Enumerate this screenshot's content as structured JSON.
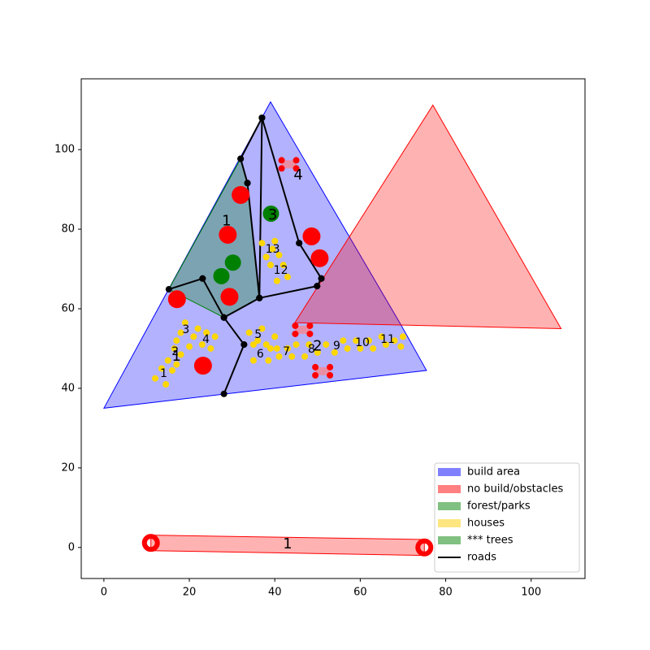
{
  "chart_data": {
    "type": "site-plan",
    "xlim": [
      -5.3,
      112.6
    ],
    "ylim": [
      -7.8,
      117.8
    ],
    "xticks": [
      0,
      20,
      40,
      60,
      80,
      100
    ],
    "yticks": [
      0,
      20,
      40,
      60,
      80,
      100
    ],
    "build_area": {
      "color": "#0000ff",
      "x": [
        0,
        39,
        57.5,
        69.5,
        75.5
      ],
      "y": [
        35,
        112,
        78,
        56,
        44.5
      ],
      "labels": [
        {
          "text": "1",
          "x": 17,
          "y": 48
        },
        {
          "text": "2",
          "x": 50,
          "y": 50.5
        },
        {
          "text": "3",
          "x": 39.5,
          "y": 83.5
        },
        {
          "text": "4",
          "x": 45.5,
          "y": 93.5
        }
      ]
    },
    "forest": {
      "color": "#008000",
      "x": [
        32,
        15.2,
        28.1,
        36.4,
        33.6
      ],
      "y": [
        97.7,
        64.9,
        57.8,
        62.7,
        91.6
      ],
      "labels": [
        {
          "text": "1",
          "x": 28.7,
          "y": 82
        }
      ]
    },
    "no_build": {
      "color": "#ff0000",
      "zones": [
        {
          "x": [
            77,
            107,
            44.7
          ],
          "y": [
            111.2,
            55,
            56.5
          ]
        },
        {
          "x": [
            11,
            75,
            75,
            11
          ],
          "y": [
            3.1,
            2,
            -2,
            -0.8
          ],
          "label": {
            "text": "1",
            "x": 43,
            "y": 0.8
          }
        }
      ],
      "obstacles": {
        "x": [
          32,
          29,
          17.1,
          29.4,
          23.2,
          48.6,
          50.5
        ],
        "y": [
          88.6,
          78.6,
          62.4,
          63,
          45.7,
          78.2,
          72.7
        ]
      },
      "small_obstacles": {
        "x": [
          43.3,
          46.5,
          51.2
        ],
        "y": [
          96.3,
          54.7,
          44.3
        ]
      }
    },
    "trees": {
      "color": "#008000",
      "x": [
        39.1,
        30.2,
        27.5
      ],
      "y": [
        83.9,
        71.6,
        68.2
      ]
    },
    "houses": {
      "color": "#ffd700",
      "x": [
        12,
        13.5,
        14.5,
        15,
        16,
        16.5,
        17,
        18,
        19,
        18,
        20,
        21,
        22,
        23,
        24,
        25,
        26,
        17,
        34,
        35,
        35,
        36,
        37,
        38,
        38.5,
        39,
        40,
        41,
        40.5,
        43,
        44,
        45,
        47,
        48,
        50,
        52,
        54,
        56,
        57,
        59,
        60,
        62,
        63,
        65,
        66,
        68,
        69.5,
        70,
        37,
        38,
        39,
        40,
        41,
        42,
        40.5,
        43,
        39.5
      ],
      "y": [
        42.5,
        45,
        41,
        47,
        44.5,
        50,
        52,
        54,
        56.5,
        48.5,
        50.5,
        53,
        55,
        51,
        54,
        50,
        53,
        46,
        54,
        51,
        47,
        52,
        55,
        51,
        47,
        50,
        53,
        48,
        50,
        50,
        48,
        51,
        48,
        51,
        49,
        51,
        49,
        52,
        50,
        52,
        50,
        52,
        50,
        53,
        51,
        52,
        50.5,
        53,
        76.5,
        73,
        71,
        77,
        73.5,
        71,
        67,
        68,
        75
      ],
      "labels": [
        {
          "text": "1",
          "x": 14,
          "y": 43.7
        },
        {
          "text": "2",
          "x": 16.7,
          "y": 49.2
        },
        {
          "text": "3",
          "x": 19.2,
          "y": 54.7
        },
        {
          "text": "4",
          "x": 23.9,
          "y": 52.2
        },
        {
          "text": "5",
          "x": 36.1,
          "y": 53.5
        },
        {
          "text": "6",
          "x": 36.6,
          "y": 48.6
        },
        {
          "text": "7",
          "x": 42.7,
          "y": 49.2
        },
        {
          "text": "8",
          "x": 48.6,
          "y": 49.8
        },
        {
          "text": "9",
          "x": 54.5,
          "y": 50.6
        },
        {
          "text": "10",
          "x": 60.5,
          "y": 51.4
        },
        {
          "text": "11",
          "x": 66.4,
          "y": 52.2
        },
        {
          "text": "12",
          "x": 41.4,
          "y": 69.6
        },
        {
          "text": "13",
          "x": 39.5,
          "y": 74.9
        }
      ]
    },
    "roads": {
      "color": "#000000",
      "segments": [
        {
          "x": [
            37,
            32
          ],
          "y": [
            108,
            97.7
          ]
        },
        {
          "x": [
            37,
            36.4
          ],
          "y": [
            108,
            62.7
          ]
        },
        {
          "x": [
            37,
            45.7
          ],
          "y": [
            108,
            76.5
          ]
        },
        {
          "x": [
            45.7,
            50.9
          ],
          "y": [
            76.5,
            67.6
          ]
        },
        {
          "x": [
            32,
            33.6
          ],
          "y": [
            97.7,
            91.6
          ]
        },
        {
          "x": [
            33.6,
            36.4
          ],
          "y": [
            91.6,
            62.7
          ]
        },
        {
          "x": [
            36.4,
            49.9
          ],
          "y": [
            62.7,
            65.7
          ]
        },
        {
          "x": [
            49.9,
            50.9
          ],
          "y": [
            65.7,
            67.6
          ]
        },
        {
          "x": [
            36.4,
            28.1
          ],
          "y": [
            62.7,
            57.8
          ]
        },
        {
          "x": [
            15.2,
            23.1
          ],
          "y": [
            64.9,
            67.6
          ]
        },
        {
          "x": [
            23.1,
            28.1
          ],
          "y": [
            67.6,
            57.8
          ]
        },
        {
          "x": [
            28.1,
            32.8
          ],
          "y": [
            57.8,
            51
          ]
        },
        {
          "x": [
            32.8,
            28.1
          ],
          "y": [
            51,
            38.6
          ]
        }
      ]
    },
    "legend": {
      "position": "lower right",
      "entries": [
        {
          "name": "build area",
          "color": "#8080ff"
        },
        {
          "name": "no build/obstacles",
          "color": "#ff8080"
        },
        {
          "name": "forest/parks",
          "color": "#80c080"
        },
        {
          "name": "houses",
          "color": "#ffe680"
        },
        {
          "name": "*** trees",
          "color": "#80c080"
        },
        {
          "name": "roads",
          "color": "#000000"
        }
      ]
    }
  }
}
